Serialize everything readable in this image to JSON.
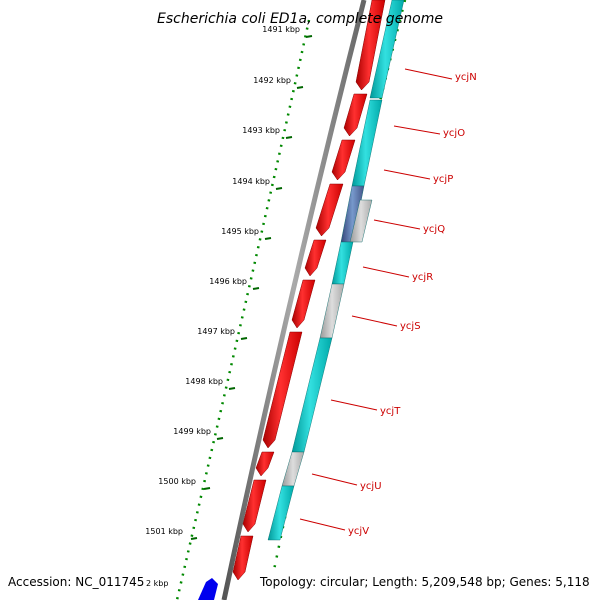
{
  "title": "Escherichia coli ED1a, complete genome",
  "ticks": [
    "1491 kbp",
    "1492 kbp",
    "1493 kbp",
    "1494 kbp",
    "1495 kbp",
    "1496 kbp",
    "1497 kbp",
    "1498 kbp",
    "1499 kbp",
    "1500 kbp",
    "1501 kbp"
  ],
  "genes": [
    "ycjN",
    "ycjO",
    "ycjP",
    "ycjQ",
    "ycjR",
    "ycjS",
    "ycjT",
    "ycjU",
    "ycjV"
  ],
  "footer": {
    "accession": "Accession: NC_011745",
    "tick_partial": "2 kbp",
    "topology": "Topology: circular; Length: 5,209,548 bp; Genes: 5,118"
  },
  "colors": {
    "forward_cds": "#ff0000",
    "cog_track": "#00cccc",
    "unclassified": "#bbbbbb",
    "cog_blue": "#5577aa",
    "backbone": "#888888",
    "tick": "#006600",
    "label": "#cc0000"
  }
}
